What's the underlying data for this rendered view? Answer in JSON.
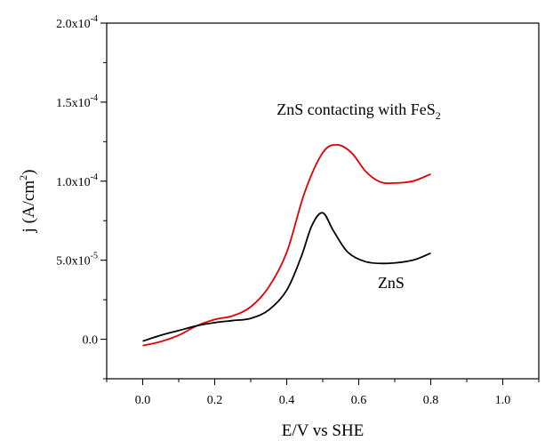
{
  "chart_data": {
    "type": "line",
    "title": "",
    "xlabel": "E/V vs SHE",
    "ylabel": {
      "main": "j (A/cm",
      "sup": "2",
      "close": ")"
    },
    "xlim": [
      -0.1,
      1.1
    ],
    "ylim": [
      -2.5e-05,
      0.0002
    ],
    "grid": false,
    "x_ticks": [
      {
        "value": 0.0,
        "label": "0.0"
      },
      {
        "value": 0.2,
        "label": "0.2"
      },
      {
        "value": 0.4,
        "label": "0.4"
      },
      {
        "value": 0.6,
        "label": "0.6"
      },
      {
        "value": 0.8,
        "label": "0.8"
      },
      {
        "value": 1.0,
        "label": "1.0"
      }
    ],
    "y_ticks": [
      {
        "value": 0.0,
        "mantissa": "0.0",
        "exp": ""
      },
      {
        "value": 5e-05,
        "mantissa": "5.0x10",
        "exp": "-5"
      },
      {
        "value": 0.0001,
        "mantissa": "1.0x10",
        "exp": "-4"
      },
      {
        "value": 0.00015,
        "mantissa": "1.5x10",
        "exp": "-4"
      },
      {
        "value": 0.0002,
        "mantissa": "2.0x10",
        "exp": "-4"
      }
    ],
    "annotations": [
      {
        "text": "ZnS contacting with FeS",
        "sub": "2",
        "x": 0.6,
        "y": 0.000142
      },
      {
        "text": "ZnS",
        "sub": "",
        "x": 0.69,
        "y": 3.25e-05
      }
    ],
    "series": [
      {
        "color": "#e00000",
        "x": [
          0.0,
          0.05,
          0.1,
          0.15,
          0.2,
          0.25,
          0.3,
          0.35,
          0.4,
          0.45,
          0.5,
          0.54,
          0.58,
          0.62,
          0.66,
          0.7,
          0.75,
          0.8
        ],
        "y": [
          -4e-06,
          -1.5e-06,
          2.5e-06,
          8.5e-06,
          1.25e-05,
          1.48e-05,
          2.05e-05,
          3.3e-05,
          5.5e-05,
          9.3e-05,
          0.000118,
          0.000123,
          0.000118,
          0.000106,
          9.95e-05,
          9.88e-05,
          0.0001,
          0.0001045
        ]
      },
      {
        "color": "#000000",
        "x": [
          0.0,
          0.05,
          0.1,
          0.15,
          0.2,
          0.25,
          0.3,
          0.35,
          0.4,
          0.44,
          0.47,
          0.5,
          0.53,
          0.57,
          0.62,
          0.68,
          0.75,
          0.8
        ],
        "y": [
          -1.2e-06,
          2.5e-06,
          5.5e-06,
          8.5e-06,
          1.05e-05,
          1.18e-05,
          1.32e-05,
          1.85e-05,
          3.1e-05,
          5.2e-05,
          7.2e-05,
          8e-05,
          6.85e-05,
          5.5e-05,
          4.9e-05,
          4.8e-05,
          5e-05,
          5.45e-05
        ]
      }
    ]
  }
}
